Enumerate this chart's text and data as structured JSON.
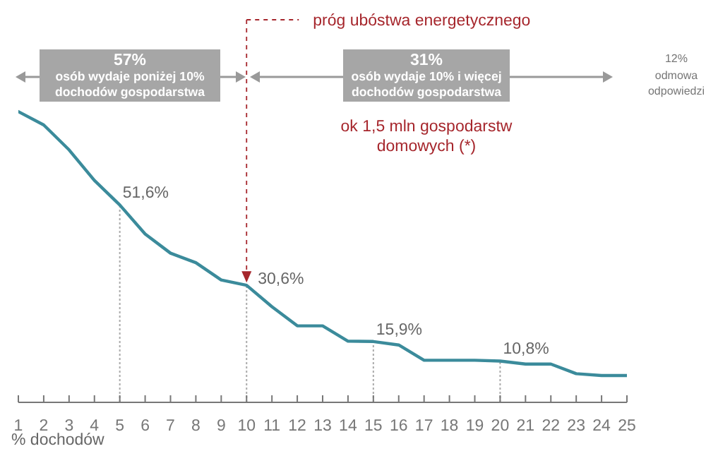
{
  "chart_data": {
    "type": "line",
    "xlabel": "% dochodów",
    "x": [
      1,
      2,
      3,
      4,
      5,
      6,
      7,
      8,
      9,
      10,
      11,
      12,
      13,
      14,
      15,
      16,
      17,
      18,
      19,
      20,
      21,
      22,
      23,
      24,
      25
    ],
    "values": [
      76,
      72.5,
      66,
      58,
      51.6,
      44,
      39,
      36.5,
      32,
      30.6,
      25,
      20,
      20,
      16,
      15.9,
      15,
      11,
      11,
      11,
      10.8,
      10,
      10,
      7.5,
      7,
      7
    ],
    "value_labels": [
      null,
      null,
      null,
      null,
      "51,6%",
      null,
      null,
      null,
      null,
      "30,6%",
      null,
      null,
      null,
      null,
      "15,9%",
      null,
      null,
      null,
      null,
      "10,8%",
      null,
      null,
      null,
      null,
      null
    ],
    "color": "#3b8b9b",
    "xlim": [
      1,
      25
    ],
    "xticks": [
      1,
      2,
      3,
      4,
      5,
      6,
      7,
      8,
      9,
      10,
      11,
      12,
      13,
      14,
      15,
      16,
      17,
      18,
      19,
      20,
      21,
      22,
      23,
      24,
      25
    ],
    "ylim": [
      0,
      100
    ],
    "tick_labels": "x",
    "ref_lines": [
      {
        "axis": "x",
        "value": 10,
        "label": "próg ubóstwa energetycznego",
        "color": "#a6262c",
        "line_style": "dashed"
      }
    ],
    "annotations": [
      "57%\nosób wydaje poniżej 10%\ndochodów gospodarstwa",
      "31%\nosób wydaje 10% i więcej\ndochodów gospodarstwa",
      "ok 1,5 mln gospodarstw\ndomowych (*)",
      "12%\nodmowa\nodpowiedzi"
    ]
  }
}
